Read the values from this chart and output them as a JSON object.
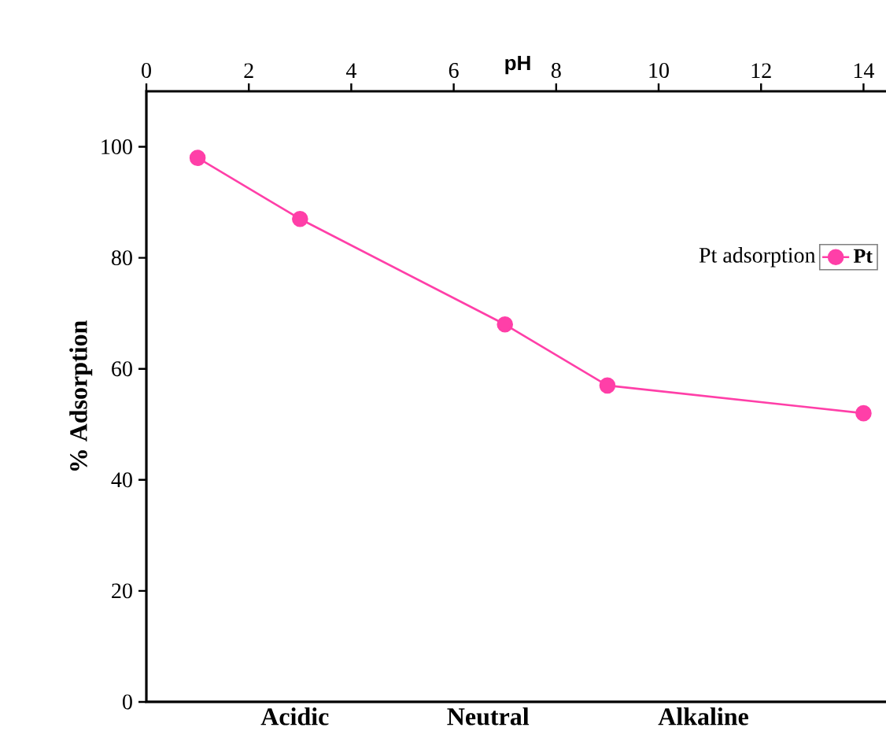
{
  "chart_data": {
    "type": "line",
    "xlabel": "pH",
    "ylabel": "% Adsorption",
    "legend_title": "Pt adsorption",
    "x": [
      1,
      3,
      7,
      9,
      14
    ],
    "series": [
      {
        "name": "Pt",
        "color": "#ff3fa8",
        "values": [
          98,
          87,
          68,
          57,
          52
        ]
      }
    ],
    "xlim": [
      0,
      14.5
    ],
    "xticks": [
      0,
      2,
      4,
      6,
      8,
      10,
      12,
      14
    ],
    "ylim": [
      0,
      110
    ],
    "yticks": [
      0,
      20,
      40,
      60,
      80,
      100
    ],
    "marker": "circle",
    "line_style": "solid",
    "legend": "top right",
    "annotations": [
      "Acidic",
      "Neutral",
      "Alkaline"
    ]
  }
}
